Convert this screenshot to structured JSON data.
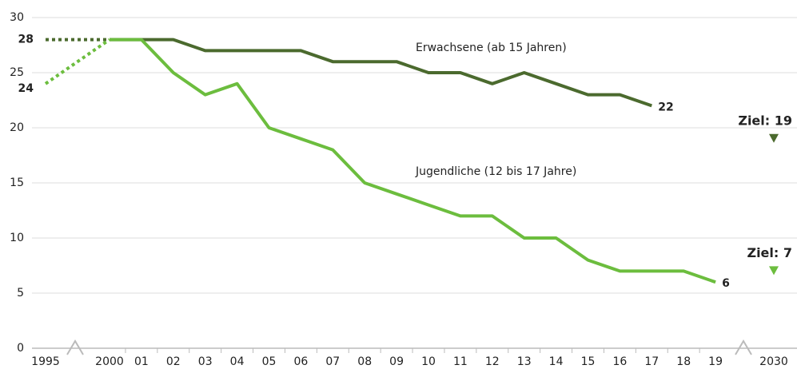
{
  "chart_data": {
    "type": "line",
    "categories": [
      "1995",
      "2000",
      "01",
      "02",
      "03",
      "04",
      "05",
      "06",
      "07",
      "08",
      "09",
      "10",
      "11",
      "12",
      "13",
      "14",
      "15",
      "16",
      "17",
      "18",
      "19",
      "2030"
    ],
    "series": [
      {
        "name": "Erwachsene (ab 15 Jahren)",
        "color": "#4b6a2e",
        "values": [
          28,
          28,
          28,
          28,
          27,
          27,
          27,
          27,
          26,
          26,
          26,
          25,
          25,
          24,
          25,
          24,
          23,
          23,
          22,
          null,
          null,
          null
        ]
      },
      {
        "name": "Jugendliche (12 bis 17 Jahre)",
        "color": "#6cbd3e",
        "values": [
          24,
          28,
          28,
          25,
          23,
          24,
          20,
          19,
          18,
          15,
          14,
          13,
          12,
          12,
          10,
          10,
          8,
          7,
          7,
          7,
          6,
          null
        ]
      }
    ],
    "targets": [
      {
        "label": "Ziel: 19",
        "value": 19,
        "color": "#4b6a2e"
      },
      {
        "label": "Ziel: 7",
        "value": 7,
        "color": "#6cbd3e"
      }
    ],
    "ylim": [
      0,
      30
    ],
    "yticks": [
      0,
      5,
      10,
      15,
      20,
      25,
      30
    ],
    "grid": true
  }
}
